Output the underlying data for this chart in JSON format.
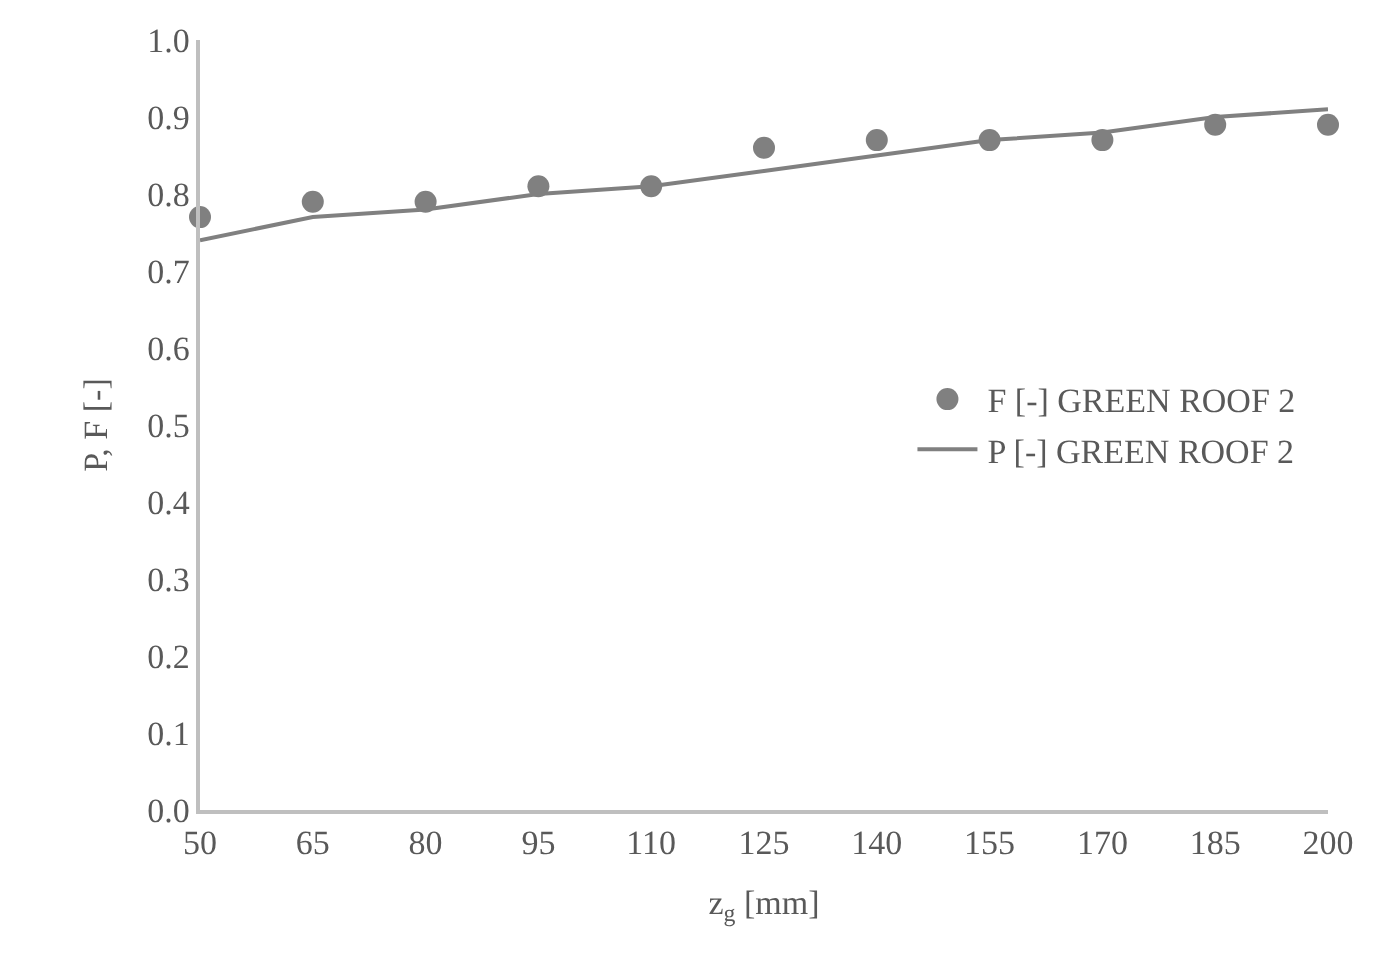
{
  "chart_data": {
    "type": "scatter",
    "xlabel": "z$_{g}$ [mm]",
    "ylabel": "P, F [-]",
    "x": [
      50,
      65,
      80,
      95,
      110,
      125,
      140,
      155,
      170,
      185,
      200
    ],
    "series": [
      {
        "name": "F [-] GREEN ROOF 2",
        "marker": "circle",
        "color": "#808080",
        "values": [
          0.77,
          0.79,
          0.79,
          0.81,
          0.81,
          0.86,
          0.87,
          0.87,
          0.87,
          0.89,
          0.89
        ]
      },
      {
        "name": "P [-] GREEN ROOF 2",
        "type": "line",
        "marker": "none",
        "line_style": "solid",
        "color": "#808080",
        "values": [
          0.74,
          0.77,
          0.78,
          0.8,
          0.81,
          0.83,
          0.85,
          0.87,
          0.88,
          0.9,
          0.91
        ]
      }
    ],
    "xlim": [
      50,
      200
    ],
    "xticks": [
      50,
      65,
      80,
      95,
      110,
      125,
      140,
      155,
      170,
      185,
      200
    ],
    "ylim": [
      0,
      1
    ],
    "yticks": [
      {
        "value": 0,
        "label": "0.0"
      },
      0.1,
      0.2,
      0.3,
      0.4,
      0.5,
      0.6,
      0.7,
      0.8,
      0.9,
      {
        "value": 1,
        "label": "1.0"
      }
    ],
    "grid": false,
    "legend": "right"
  }
}
